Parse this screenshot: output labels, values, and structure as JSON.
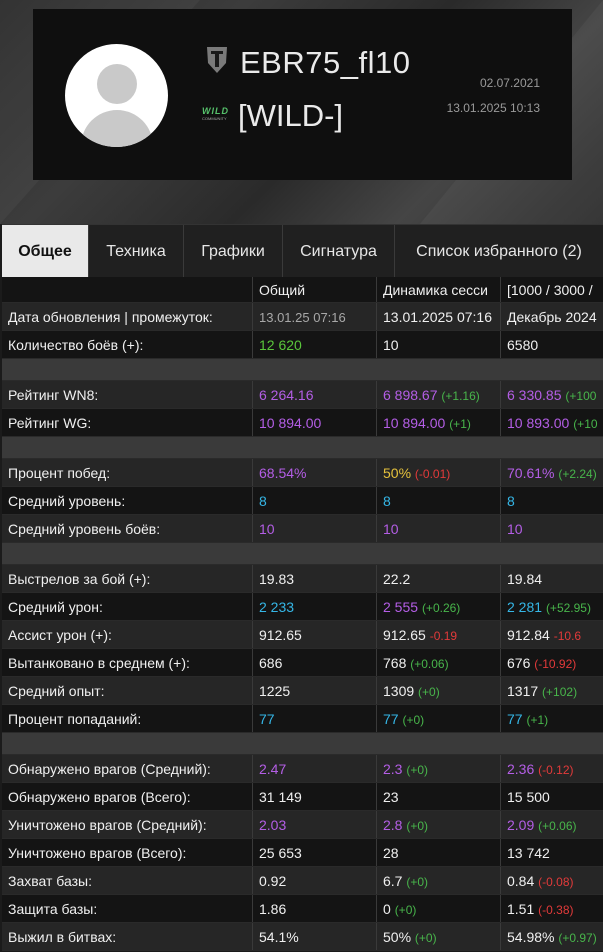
{
  "profile": {
    "nickname": "EBR75_fl10",
    "clan_tag": "[WILD-]",
    "clan_logo_text": "WILD",
    "clan_logo_sub": "COMMUNITY",
    "created_date": "02.07.2021",
    "updated_datetime": "13.01.2025 10:13"
  },
  "tabs": [
    {
      "label": "Общее",
      "active": true
    },
    {
      "label": "Техника"
    },
    {
      "label": "Графики"
    },
    {
      "label": "Сигнатура"
    },
    {
      "label": "Список избранного (2)"
    }
  ],
  "table": {
    "headers": [
      "",
      "Общий",
      "Динамика сесси",
      "[1000 / 3000 /"
    ],
    "rows": [
      {
        "label": "Дата обновления | промежуток:",
        "cells": [
          {
            "v": "13.01.25 07:16",
            "c": "grey"
          },
          {
            "v": "13.01.2025 07:16"
          },
          {
            "v": "Декабрь 2024"
          }
        ]
      },
      {
        "label": "Количество боёв (+):",
        "cells": [
          {
            "v": "12 620",
            "c": "green"
          },
          {
            "v": "10"
          },
          {
            "v": "6580"
          }
        ]
      },
      {
        "sep": true
      },
      {
        "label": "Рейтинг WN8:",
        "cells": [
          {
            "v": "6 264.16",
            "c": "purple"
          },
          {
            "v": "6 898.67",
            "c": "purple",
            "d": "(+1.16)",
            "dc": "dp"
          },
          {
            "v": "6 330.85",
            "c": "purple",
            "d": "(+100",
            "dc": "dp"
          }
        ]
      },
      {
        "label": "Рейтинг WG:",
        "cells": [
          {
            "v": "10 894.00",
            "c": "purple"
          },
          {
            "v": "10 894.00",
            "c": "purple",
            "d": "(+1)",
            "dc": "dp"
          },
          {
            "v": "10 893.00",
            "c": "purple",
            "d": "(+10",
            "dc": "dp"
          }
        ]
      },
      {
        "sep": true
      },
      {
        "label": "Процент побед:",
        "cells": [
          {
            "v": "68.54%",
            "c": "purple"
          },
          {
            "v": "50%",
            "c": "yellow",
            "d": "(-0.01)",
            "dc": "dn"
          },
          {
            "v": "70.61%",
            "c": "purple",
            "d": "(+2.24)",
            "dc": "dp"
          }
        ]
      },
      {
        "label": "Средний уровень:",
        "cells": [
          {
            "v": "8",
            "c": "cyan"
          },
          {
            "v": "8",
            "c": "cyan"
          },
          {
            "v": "8",
            "c": "cyan"
          }
        ]
      },
      {
        "label": "Средний уровень боёв:",
        "cells": [
          {
            "v": "10",
            "c": "purple"
          },
          {
            "v": "10",
            "c": "purple"
          },
          {
            "v": "10",
            "c": "purple"
          }
        ]
      },
      {
        "sep": true
      },
      {
        "label": "Выстрелов за бой (+):",
        "cells": [
          {
            "v": "19.83"
          },
          {
            "v": "22.2"
          },
          {
            "v": "19.84"
          }
        ]
      },
      {
        "label": "Средний урон:",
        "cells": [
          {
            "v": "2 233",
            "c": "cyan"
          },
          {
            "v": "2 555",
            "c": "purple",
            "d": "(+0.26)",
            "dc": "dp"
          },
          {
            "v": "2 281",
            "c": "cyan",
            "d": "(+52.95)",
            "dc": "dp"
          }
        ]
      },
      {
        "label": "Ассист урон (+):",
        "cells": [
          {
            "v": "912.65"
          },
          {
            "v": "912.65",
            "d": "-0.19",
            "dc": "dn"
          },
          {
            "v": "912.84",
            "d": "-10.6",
            "dc": "dn"
          }
        ]
      },
      {
        "label": "Вытанковано в среднем (+):",
        "cells": [
          {
            "v": "686"
          },
          {
            "v": "768",
            "d": "(+0.06)",
            "dc": "dp"
          },
          {
            "v": "676",
            "d": "(-10.92)",
            "dc": "dn"
          }
        ]
      },
      {
        "label": "Средний опыт:",
        "cells": [
          {
            "v": "1225"
          },
          {
            "v": "1309",
            "d": "(+0)",
            "dc": "dp"
          },
          {
            "v": "1317",
            "d": "(+102)",
            "dc": "dp"
          }
        ]
      },
      {
        "label": "Процент попаданий:",
        "cells": [
          {
            "v": "77",
            "c": "cyan"
          },
          {
            "v": "77",
            "c": "cyan",
            "d": "(+0)",
            "dc": "dp"
          },
          {
            "v": "77",
            "c": "cyan",
            "d": "(+1)",
            "dc": "dp"
          }
        ]
      },
      {
        "sep": true
      },
      {
        "label": "Обнаружено врагов (Средний):",
        "cells": [
          {
            "v": "2.47",
            "c": "purple"
          },
          {
            "v": "2.3",
            "c": "purple",
            "d": "(+0)",
            "dc": "dp"
          },
          {
            "v": "2.36",
            "c": "purple",
            "d": "(-0.12)",
            "dc": "dn"
          }
        ]
      },
      {
        "label": "Обнаружено врагов (Всего):",
        "cells": [
          {
            "v": "31 149"
          },
          {
            "v": "23"
          },
          {
            "v": "15 500"
          }
        ]
      },
      {
        "label": "Уничтожено врагов (Средний):",
        "cells": [
          {
            "v": "2.03",
            "c": "purple"
          },
          {
            "v": "2.8",
            "c": "purple",
            "d": "(+0)",
            "dc": "dp"
          },
          {
            "v": "2.09",
            "c": "purple",
            "d": "(+0.06)",
            "dc": "dp"
          }
        ]
      },
      {
        "label": "Уничтожено врагов (Всего):",
        "cells": [
          {
            "v": "25 653"
          },
          {
            "v": "28"
          },
          {
            "v": "13 742"
          }
        ]
      },
      {
        "label": "Захват базы:",
        "cells": [
          {
            "v": "0.92"
          },
          {
            "v": "6.7",
            "d": "(+0)",
            "dc": "dp"
          },
          {
            "v": "0.84",
            "d": "(-0.08)",
            "dc": "dn"
          }
        ]
      },
      {
        "label": "Защита базы:",
        "cells": [
          {
            "v": "1.86"
          },
          {
            "v": "0",
            "d": "(+0)",
            "dc": "dp"
          },
          {
            "v": "1.51",
            "d": "(-0.38)",
            "dc": "dn"
          }
        ]
      },
      {
        "label": "Выжил в битвах:",
        "cells": [
          {
            "v": "54.1%"
          },
          {
            "v": "50%",
            "d": "(+0)",
            "dc": "dp"
          },
          {
            "v": "54.98%",
            "d": "(+0.97)",
            "dc": "dp"
          }
        ]
      }
    ]
  }
}
